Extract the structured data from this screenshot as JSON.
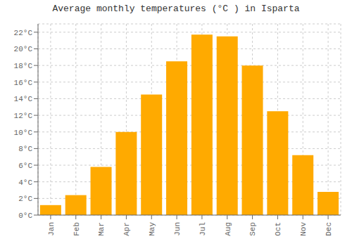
{
  "chart_data": {
    "type": "bar",
    "title": "Average monthly temperatures (°C ) in Isparta",
    "categories": [
      "Jan",
      "Feb",
      "Mar",
      "Apr",
      "May",
      "Jun",
      "Jul",
      "Aug",
      "Sep",
      "Oct",
      "Nov",
      "Dec"
    ],
    "values": [
      1.2,
      2.4,
      5.8,
      10.0,
      14.5,
      18.5,
      21.7,
      21.5,
      18.0,
      12.5,
      7.2,
      2.8
    ],
    "color": "#FFAA00",
    "ylim": [
      0,
      23
    ],
    "yticks": [
      {
        "value": 0,
        "label": "0°C"
      },
      {
        "value": 2,
        "label": "2°C"
      },
      {
        "value": 4,
        "label": "4°C"
      },
      {
        "value": 6,
        "label": "6°C"
      },
      {
        "value": 8,
        "label": "8°C"
      },
      {
        "value": 10,
        "label": "10°C"
      },
      {
        "value": 12,
        "label": "12°C"
      },
      {
        "value": 14,
        "label": "14°C"
      },
      {
        "value": 16,
        "label": "16°C"
      },
      {
        "value": 18,
        "label": "18°C"
      },
      {
        "value": 20,
        "label": "20°C"
      },
      {
        "value": 22,
        "label": "22°C"
      }
    ],
    "grid": true
  }
}
